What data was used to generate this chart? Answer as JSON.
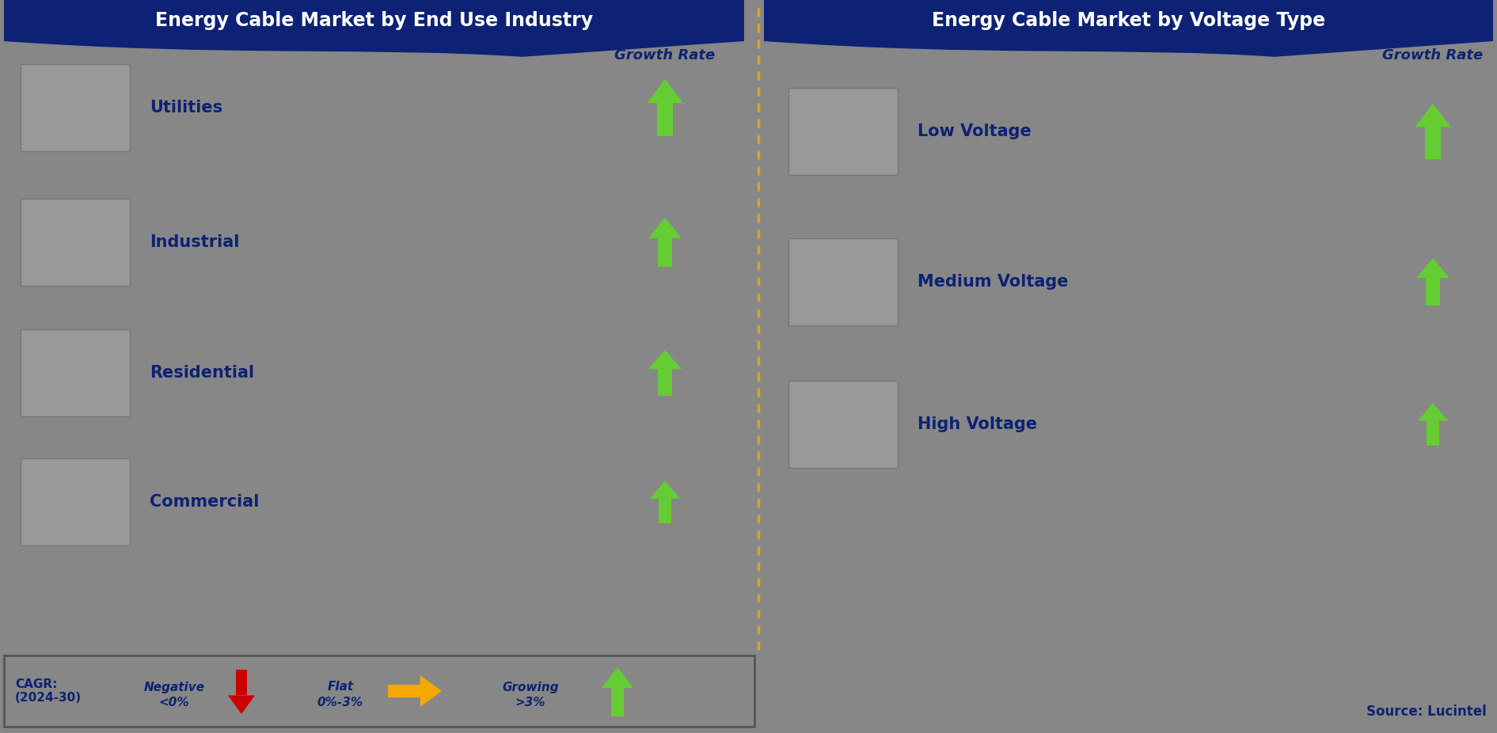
{
  "left_title": "Energy Cable Market by End Use Industry",
  "right_title": "Energy Cable Market by Voltage Type",
  "left_items": [
    "Utilities",
    "Industrial",
    "Residential",
    "Commercial"
  ],
  "right_items": [
    "Low Voltage",
    "Medium Voltage",
    "High Voltage"
  ],
  "bg_color": "#878787",
  "header_color": "#0d2274",
  "header_text_color": "#ffffff",
  "item_text_color": "#0d2274",
  "growth_rate_color": "#0d2274",
  "legend_label": "CAGR:\n(2024-30)",
  "legend_neg_label": "Negative\n<0%",
  "legend_flat_label": "Flat\n0%-3%",
  "legend_grow_label": "Growing\n>3%",
  "source_text": "Source: Lucintel",
  "divider_color": "#DAA520",
  "green_arrow_color": "#66CC33",
  "red_arrow_color": "#CC0000",
  "orange_arrow_color": "#F5A800",
  "img_placeholder_color": "#999999",
  "img_border_color": "#777777",
  "legend_border_color": "#555555"
}
